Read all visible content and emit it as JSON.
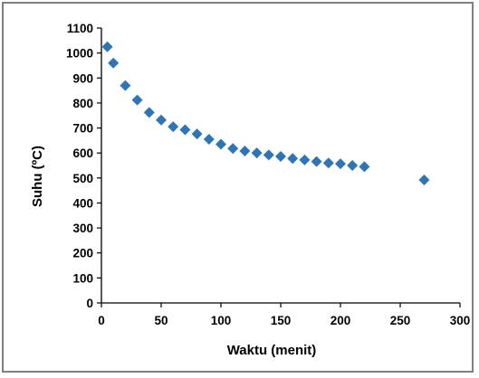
{
  "chart_data": {
    "type": "scatter",
    "xlabel": "Waktu (menit)",
    "ylabel": "Suhu (ºC)",
    "xlim": [
      0,
      300
    ],
    "ylim": [
      0,
      1100
    ],
    "xticks": [
      0,
      50,
      100,
      150,
      200,
      250,
      300
    ],
    "yticks": [
      0,
      100,
      200,
      300,
      400,
      500,
      600,
      700,
      800,
      900,
      1000,
      1100
    ],
    "grid": false,
    "legend": "none",
    "marker": "diamond",
    "marker_color": "#2E75B6",
    "series": [
      {
        "x": [
          5,
          10,
          20,
          30,
          40,
          50,
          60,
          70,
          80,
          90,
          100,
          110,
          120,
          130,
          140,
          150,
          160,
          170,
          180,
          190,
          200,
          210,
          220,
          270
        ],
        "y": [
          1025,
          960,
          870,
          812,
          762,
          732,
          705,
          693,
          676,
          655,
          635,
          618,
          608,
          600,
          592,
          586,
          578,
          572,
          566,
          560,
          557,
          550,
          545,
          492
        ]
      }
    ]
  }
}
